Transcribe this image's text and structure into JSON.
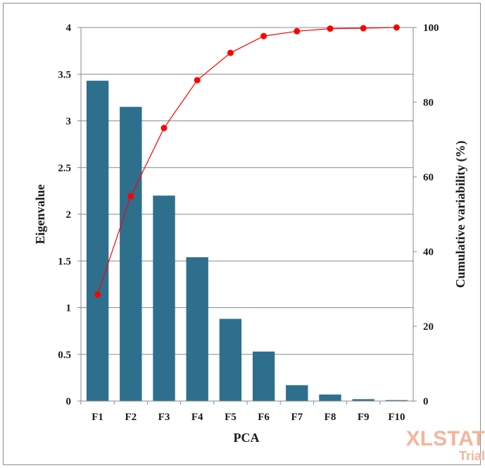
{
  "chart_data": {
    "type": "bar",
    "categories": [
      "F1",
      "F2",
      "F3",
      "F4",
      "F5",
      "F6",
      "F7",
      "F8",
      "F9",
      "F10"
    ],
    "series": [
      {
        "type": "bar",
        "axis": "left",
        "values": [
          3.43,
          3.15,
          2.2,
          1.54,
          0.88,
          0.53,
          0.17,
          0.07,
          0.02,
          0.01
        ],
        "color": "#2e6f8e"
      },
      {
        "type": "line",
        "axis": "right",
        "values": [
          28.5,
          54.8,
          73.1,
          85.9,
          93.2,
          97.7,
          99.0,
          99.7,
          99.8,
          100.0
        ],
        "color": "#ff0000"
      }
    ],
    "xlabel": "PCA",
    "ylabel": "Eigenvalue",
    "y2label": "Cumulative variability (%)",
    "ylim": [
      0,
      4
    ],
    "yticks": [
      "0",
      "0.5",
      "1",
      "1.5",
      "2",
      "2.5",
      "3",
      "3.5",
      "4"
    ],
    "y2lim": [
      0,
      100
    ],
    "y2ticks": [
      "0",
      "20",
      "40",
      "60",
      "80",
      "100"
    ],
    "grid": true,
    "legend": "none"
  },
  "watermark": {
    "main": "XLSTAT",
    "sub": "Trial"
  }
}
